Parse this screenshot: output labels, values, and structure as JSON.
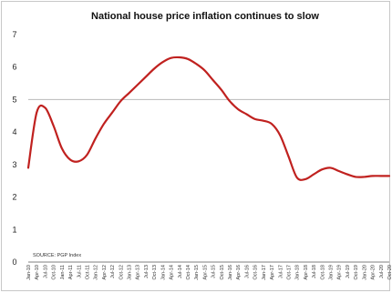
{
  "chart_data": {
    "type": "line",
    "title": "National house price inflation continues to slow",
    "xlabel": "",
    "ylabel": "",
    "ylim": [
      0,
      7
    ],
    "yticks": [
      "0",
      "1",
      "2",
      "3",
      "4",
      "5",
      "6",
      "7"
    ],
    "grid": false,
    "legend": "none",
    "reference_line": {
      "y": 5,
      "color": "#b9b9b9"
    },
    "source": "SOURCE: PGP Index",
    "categories": [
      "Jan-10",
      "Apr-10",
      "Jul-10",
      "Oct-10",
      "Jan-11",
      "Apr-11",
      "Jul-11",
      "Oct-11",
      "Jan-12",
      "Apr-12",
      "Jul-12",
      "Oct-12",
      "Jan-13",
      "Apr-13",
      "Jul-13",
      "Oct-13",
      "Jan-14",
      "Apr-14",
      "Jul-14",
      "Oct-14",
      "Jan-15",
      "Apr-15",
      "Jul-15",
      "Oct-15",
      "Jan-16",
      "Apr-16",
      "Jul-16",
      "Oct-16",
      "Jan-17",
      "Apr-17",
      "Jul-17",
      "Oct-17",
      "Jan-18",
      "Apr-18",
      "Jul-18",
      "Oct-18",
      "Jan-19",
      "Apr-19",
      "Jul-19",
      "Oct-19",
      "Jan-20",
      "Apr-20",
      "Jul-20",
      "Oct-20"
    ],
    "series": [
      {
        "color": "#c0211f",
        "values": [
          2.9,
          4.6,
          4.75,
          4.2,
          3.5,
          3.15,
          3.1,
          3.3,
          3.8,
          4.25,
          4.6,
          4.95,
          5.2,
          5.45,
          5.7,
          5.95,
          6.15,
          6.28,
          6.3,
          6.25,
          6.1,
          5.9,
          5.6,
          5.3,
          4.95,
          4.7,
          4.55,
          4.4,
          4.35,
          4.25,
          3.9,
          3.25,
          2.6,
          2.55,
          2.7,
          2.85,
          2.9,
          2.8,
          2.7,
          2.62,
          2.62,
          2.65,
          2.65,
          2.65
        ]
      }
    ]
  }
}
